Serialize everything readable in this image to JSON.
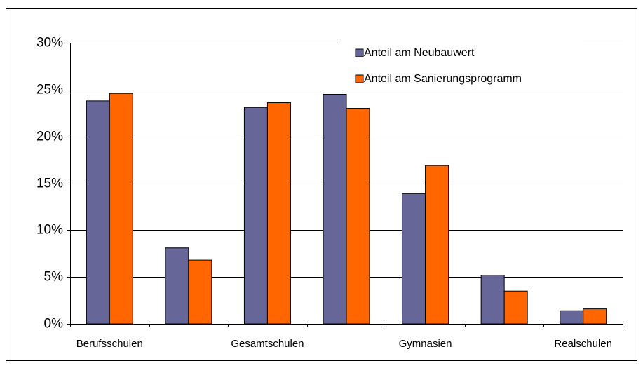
{
  "chart_data": {
    "type": "bar",
    "categories": [
      "Berufsschulen",
      null,
      "Gesamtschulen",
      null,
      "Gymnasien",
      null,
      "Realschulen"
    ],
    "series": [
      {
        "name": "Anteil am Neubauwert",
        "color": "#666699",
        "values": [
          23.8,
          8.1,
          23.1,
          24.5,
          13.9,
          5.2,
          1.4
        ]
      },
      {
        "name": "Anteil am Sanierungsprogramm",
        "color": "#ff6600",
        "values": [
          24.6,
          6.8,
          23.6,
          23.0,
          16.9,
          3.5,
          1.6
        ]
      }
    ],
    "ylim": [
      0,
      30
    ],
    "yticks": [
      {
        "value": 0,
        "label": "0%"
      },
      {
        "value": 5,
        "label": "5%"
      },
      {
        "value": 10,
        "label": "10%"
      },
      {
        "value": 15,
        "label": "15%"
      },
      {
        "value": 20,
        "label": "20%"
      },
      {
        "value": 25,
        "label": "25%"
      },
      {
        "value": 30,
        "label": "30%"
      }
    ],
    "grid": true,
    "legend": "top-right"
  }
}
